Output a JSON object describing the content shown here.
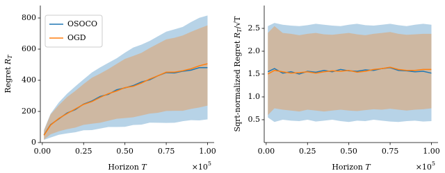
{
  "chart_data": [
    {
      "type": "line",
      "legend": "upper left",
      "ylabel": {
        "text": "Regret",
        "symbol": "R",
        "subscript": "T"
      },
      "xlabel": {
        "text": "Horizon",
        "symbol": "T"
      },
      "x_offset": {
        "text": "×10",
        "superscript": "5"
      },
      "x": [
        0.01,
        0.05,
        0.1,
        0.15,
        0.2,
        0.25,
        0.3,
        0.35,
        0.4,
        0.45,
        0.5,
        0.55,
        0.6,
        0.65,
        0.7,
        0.75,
        0.8,
        0.85,
        0.9,
        0.95,
        1.0
      ],
      "xlim": [
        -0.012,
        1.04
      ],
      "xticks": [
        {
          "value": 0,
          "label": "0.00"
        },
        {
          "value": 0.25,
          "label": "0.25"
        },
        {
          "value": 0.5,
          "label": "0.50"
        },
        {
          "value": 0.75,
          "label": "0.75"
        },
        {
          "value": 1,
          "label": "1.00"
        }
      ],
      "ylim": [
        0,
        880
      ],
      "yticks": [
        0,
        200,
        400,
        600,
        800
      ],
      "series": [
        {
          "name": "OSOCO",
          "color": "#1f77b4",
          "values": [
            49,
            115,
            152,
            190,
            212,
            247,
            267,
            296,
            310,
            339,
            351,
            366,
            389,
            403,
            429,
            449,
            447,
            458,
            465,
            481,
            481
          ],
          "upper": [
            81,
            185,
            258,
            314,
            361,
            406,
            450,
            483,
            512,
            541,
            577,
            610,
            629,
            653,
            683,
            712,
            727,
            743,
            774,
            801,
            816
          ],
          "lower": [
            17,
            32,
            50,
            59,
            66,
            79,
            80,
            90,
            100,
            100,
            101,
            113,
            115,
            128,
            127,
            126,
            127,
            137,
            144,
            142,
            149
          ]
        },
        {
          "name": "OGD",
          "color": "#ff7f0e",
          "values": [
            47,
            112,
            155,
            186,
            216,
            245,
            263,
            290,
            314,
            331,
            353,
            361,
            382,
            408,
            429,
            452,
            452,
            461,
            474,
            493,
            506
          ],
          "upper": [
            76,
            180,
            240,
            292,
            332,
            376,
            416,
            443,
            472,
            505,
            537,
            556,
            576,
            607,
            635,
            663,
            673,
            688,
            711,
            733,
            753
          ],
          "lower": [
            19,
            53,
            72,
            86,
            96,
            114,
            121,
            127,
            140,
            153,
            157,
            162,
            174,
            186,
            191,
            203,
            204,
            204,
            216,
            225,
            237
          ]
        }
      ]
    },
    {
      "type": "line",
      "ylabel": {
        "text": "Sqrt-normalized Regret",
        "symbol": "R",
        "subscript": "T",
        "suffix": "/√T"
      },
      "xlabel": {
        "text": "Horizon",
        "symbol": "T"
      },
      "x_offset": {
        "text": "×10",
        "superscript": "5"
      },
      "x": [
        0.01,
        0.05,
        0.1,
        0.15,
        0.2,
        0.25,
        0.3,
        0.35,
        0.4,
        0.45,
        0.5,
        0.55,
        0.6,
        0.65,
        0.7,
        0.75,
        0.8,
        0.85,
        0.9,
        0.95,
        1.0
      ],
      "xlim": [
        -0.012,
        1.04
      ],
      "xticks": [
        {
          "value": 0,
          "label": "0.00"
        },
        {
          "value": 0.25,
          "label": "0.25"
        },
        {
          "value": 0.5,
          "label": "0.50"
        },
        {
          "value": 0.75,
          "label": "0.75"
        },
        {
          "value": 1,
          "label": "1.00"
        }
      ],
      "ylim": [
        0,
        3.0
      ],
      "yticks": [
        0.5,
        {
          "value": 1,
          "label": "1.0"
        },
        1.5,
        {
          "value": 2,
          "label": "2.0"
        },
        2.5
      ],
      "series": [
        {
          "color": "#1f77b4",
          "values": [
            1.55,
            1.62,
            1.52,
            1.55,
            1.5,
            1.56,
            1.54,
            1.58,
            1.55,
            1.6,
            1.57,
            1.56,
            1.59,
            1.58,
            1.62,
            1.64,
            1.58,
            1.57,
            1.55,
            1.56,
            1.52
          ],
          "upper": [
            2.55,
            2.62,
            2.58,
            2.56,
            2.55,
            2.57,
            2.6,
            2.58,
            2.56,
            2.55,
            2.58,
            2.6,
            2.57,
            2.56,
            2.58,
            2.6,
            2.57,
            2.55,
            2.58,
            2.6,
            2.58
          ],
          "lower": [
            0.55,
            0.45,
            0.5,
            0.48,
            0.47,
            0.5,
            0.46,
            0.48,
            0.5,
            0.47,
            0.45,
            0.48,
            0.47,
            0.5,
            0.48,
            0.46,
            0.45,
            0.47,
            0.48,
            0.46,
            0.47
          ]
        },
        {
          "color": "#ff7f0e",
          "values": [
            1.5,
            1.58,
            1.55,
            1.52,
            1.53,
            1.55,
            1.52,
            1.55,
            1.57,
            1.56,
            1.58,
            1.54,
            1.56,
            1.6,
            1.62,
            1.65,
            1.6,
            1.58,
            1.58,
            1.6,
            1.6
          ],
          "upper": [
            2.4,
            2.55,
            2.4,
            2.38,
            2.35,
            2.38,
            2.4,
            2.37,
            2.36,
            2.38,
            2.4,
            2.37,
            2.35,
            2.38,
            2.4,
            2.42,
            2.38,
            2.36,
            2.37,
            2.38,
            2.38
          ],
          "lower": [
            0.6,
            0.75,
            0.72,
            0.7,
            0.68,
            0.72,
            0.7,
            0.68,
            0.7,
            0.72,
            0.7,
            0.69,
            0.71,
            0.73,
            0.72,
            0.74,
            0.72,
            0.7,
            0.72,
            0.73,
            0.75
          ]
        }
      ]
    }
  ]
}
